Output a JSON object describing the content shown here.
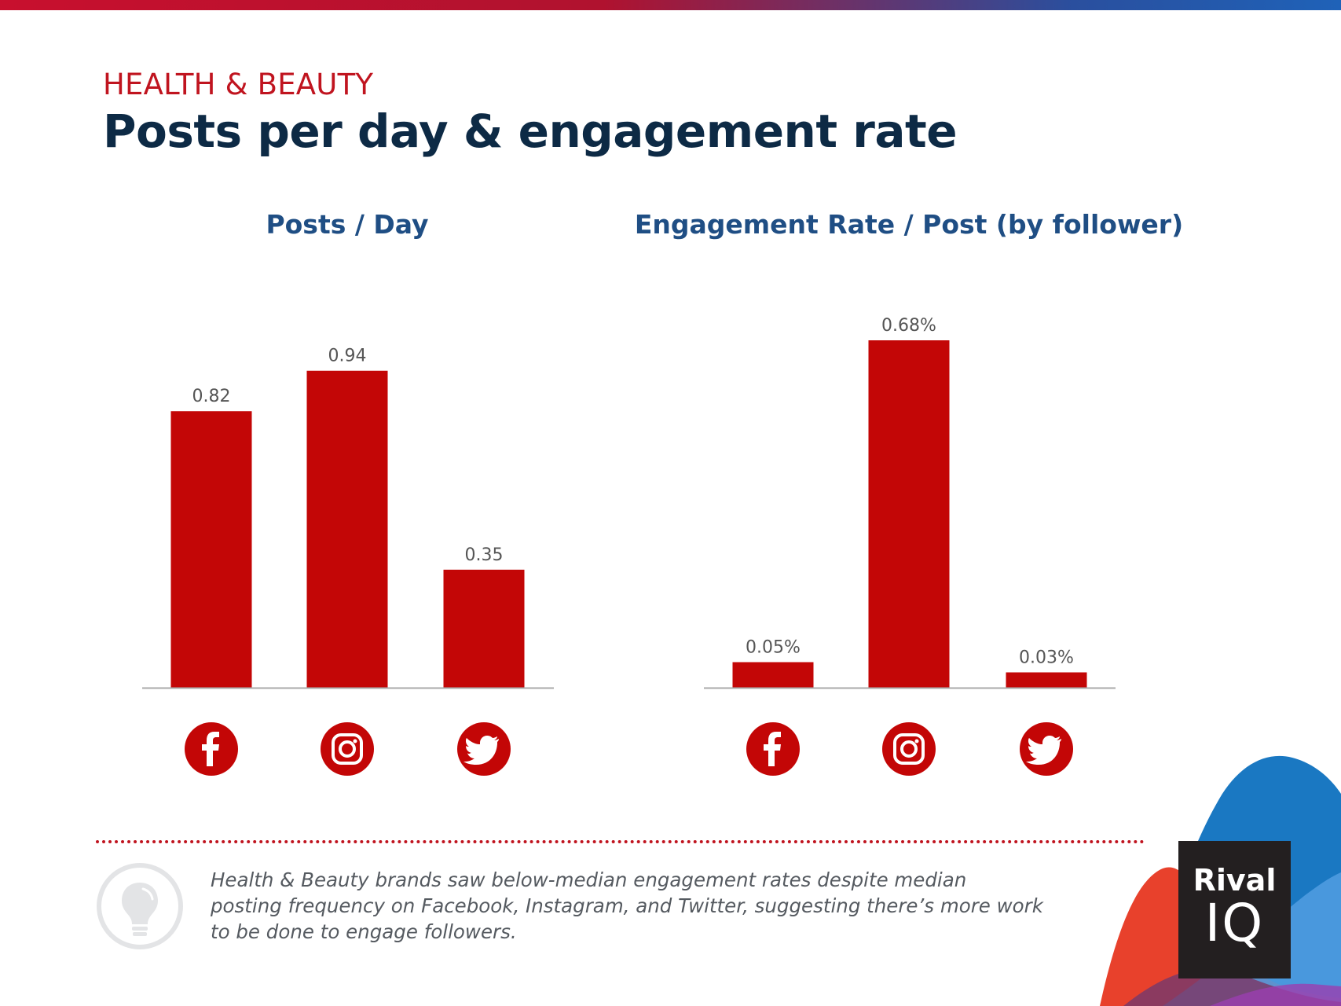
{
  "header": {
    "kicker": "HEALTH & BEAUTY",
    "title": "Posts per day & engagement rate"
  },
  "colors": {
    "bar": "#c30606",
    "title": "#0d2a45",
    "chart_title": "#1f4e84",
    "kicker": "#c0141f"
  },
  "chart_data": [
    {
      "type": "bar",
      "title": "Posts / Day",
      "categories": [
        "Facebook",
        "Instagram",
        "Twitter"
      ],
      "category_icons": [
        "facebook-icon",
        "instagram-icon",
        "twitter-icon"
      ],
      "values": [
        0.82,
        0.94,
        0.35
      ],
      "value_labels": [
        "0.82",
        "0.94",
        "0.35"
      ],
      "ylim": [
        0,
        1.0
      ],
      "grid": false
    },
    {
      "type": "bar",
      "title": "Engagement Rate / Post (by follower)",
      "categories": [
        "Facebook",
        "Instagram",
        "Twitter"
      ],
      "category_icons": [
        "facebook-icon",
        "instagram-icon",
        "twitter-icon"
      ],
      "values": [
        0.05,
        0.68,
        0.03
      ],
      "value_labels": [
        "0.05%",
        "0.68%",
        "0.03%"
      ],
      "ylim": [
        0,
        0.68
      ],
      "grid": false
    }
  ],
  "insight": {
    "icon": "lightbulb-icon",
    "text": "Health & Beauty brands saw below-median engagement rates despite median posting frequency on Facebook, Instagram, and Twitter, suggesting there’s more work to be done to engage followers."
  },
  "logo": {
    "line1": "Rival",
    "line2": "IQ"
  }
}
